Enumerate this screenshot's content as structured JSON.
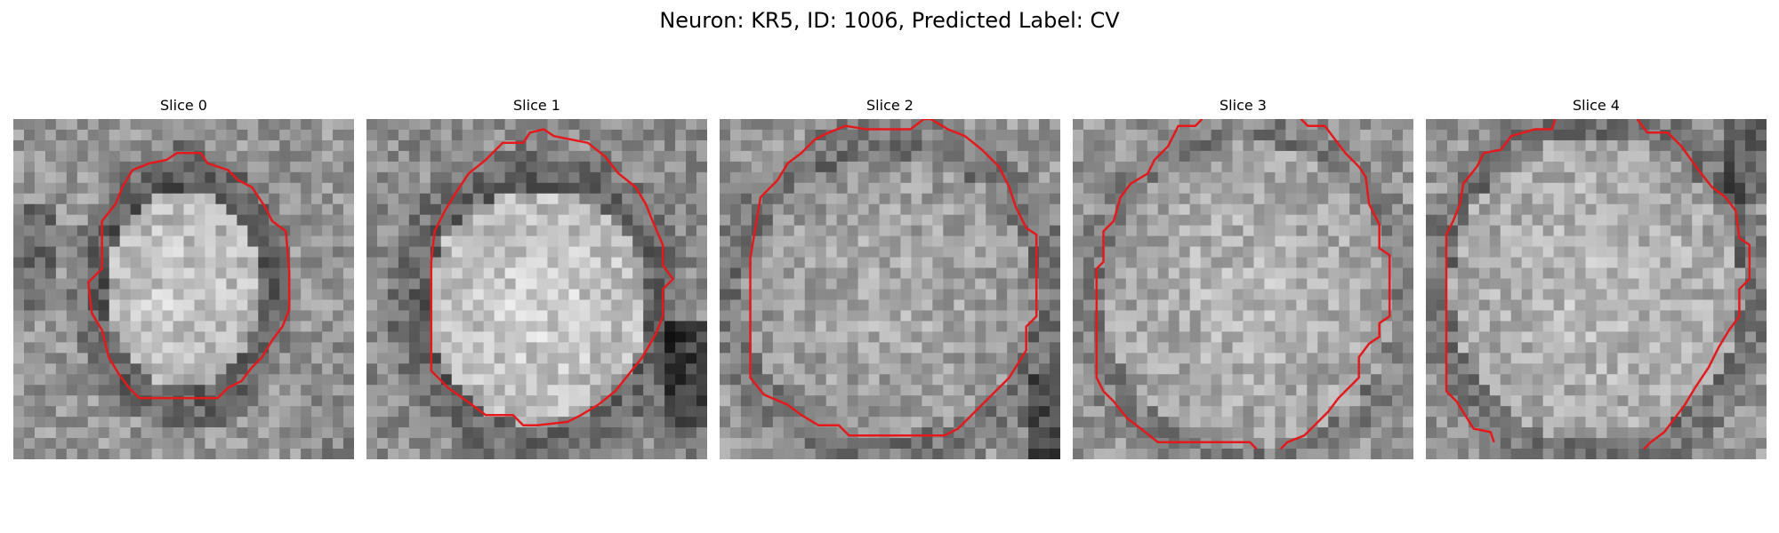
{
  "figure": {
    "title": "Neuron: KR5, ID: 1006, Predicted Label: CV",
    "contour_color": "#e31a1c"
  },
  "slices": [
    {
      "title": "Slice 0"
    },
    {
      "title": "Slice 1"
    },
    {
      "title": "Slice 2"
    },
    {
      "title": "Slice 3"
    },
    {
      "title": "Slice 4"
    }
  ]
}
